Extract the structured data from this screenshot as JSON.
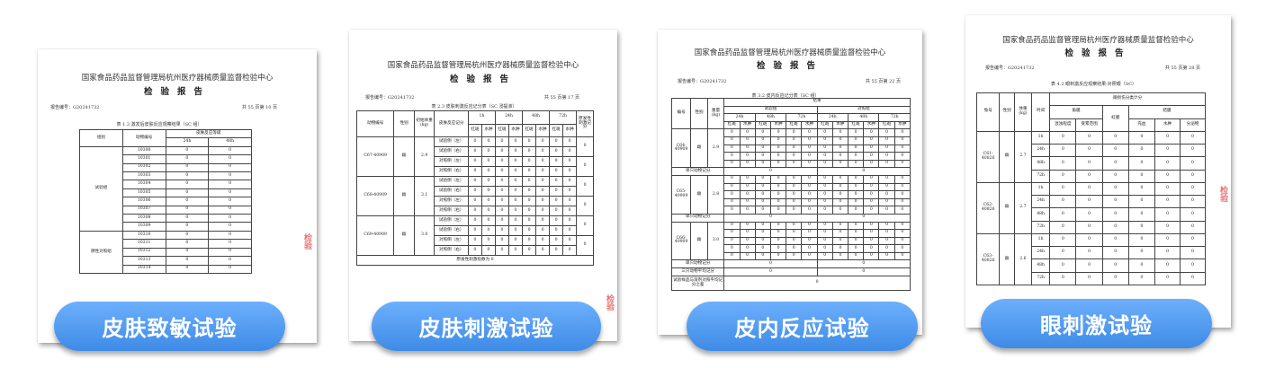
{
  "doc1": {
    "org": "国家食品药品监督管理局杭州医疗器械质量监督检验中心",
    "title": "检验报告",
    "report_no": "报告编号：G20241732",
    "page": "共 55 页第 10 页",
    "caption": "表 1.3 激发后皮肤反应观察结果（SC 组）",
    "headers": {
      "group": "组别",
      "animal": "动物编号",
      "grade": "皮肤反应等级",
      "times": [
        "24h",
        "48h"
      ]
    },
    "groups": [
      {
        "name": "试验组",
        "rows": [
          {
            "id": "10300",
            "values": [
              0,
              0
            ]
          },
          {
            "id": "10301",
            "values": [
              0,
              0
            ]
          },
          {
            "id": "10302",
            "values": [
              0,
              0
            ]
          },
          {
            "id": "10303",
            "values": [
              0,
              0
            ]
          },
          {
            "id": "10304",
            "values": [
              0,
              0
            ]
          },
          {
            "id": "10305",
            "values": [
              0,
              0
            ]
          },
          {
            "id": "10306",
            "values": [
              0,
              0
            ]
          },
          {
            "id": "10307",
            "values": [
              0,
              0
            ]
          },
          {
            "id": "10308",
            "values": [
              0,
              0
            ]
          },
          {
            "id": "10309",
            "values": [
              0,
              0
            ]
          }
        ]
      },
      {
        "name": "阴性对照组",
        "rows": [
          {
            "id": "10310",
            "values": [
              0,
              0
            ]
          },
          {
            "id": "10311",
            "values": [
              0,
              0
            ]
          },
          {
            "id": "10312",
            "values": [
              0,
              0
            ]
          },
          {
            "id": "10313",
            "values": [
              0,
              0
            ]
          },
          {
            "id": "10314",
            "values": [
              0,
              0
            ]
          }
        ]
      }
    ],
    "label": "皮肤致敏试验"
  },
  "doc2": {
    "org": "国家食品药品监督管理局杭州医疗器械质量监督检验中心",
    "title": "检验报告",
    "report_no": "报告编号：G20241732",
    "page": "共 55 页第 17 页",
    "caption": "表 2.3 皮肤刺激反应记分表（SC 浸提液）",
    "headers": {
      "animal": "动物编号",
      "sex": "性别",
      "weight": "初始体重(kg)",
      "score": "皮肤反应记分",
      "times": [
        "1h",
        "24h",
        "48h",
        "72h"
      ],
      "erythema": "红斑",
      "edema": "水肿",
      "primary": "原发性刺激记分"
    },
    "animals": [
      {
        "id": "C67-40909",
        "sex": "雌",
        "weight": "2.9",
        "sites": [
          {
            "site": "试验侧（左）",
            "values": [
              0,
              0,
              0,
              0,
              0,
              0,
              0,
              0
            ]
          },
          {
            "site": "试验侧（右）",
            "values": [
              0,
              0,
              0,
              0,
              0,
              0,
              0,
              0
            ]
          },
          {
            "site": "对照侧（左）",
            "values": [
              0,
              0,
              0,
              0,
              0,
              0,
              0,
              0
            ]
          },
          {
            "site": "对照侧（右）",
            "values": [
              0,
              0,
              0,
              0,
              0,
              0,
              0,
              0
            ]
          }
        ],
        "scores": [
          0,
          0
        ]
      },
      {
        "id": "C68-40909",
        "sex": "雌",
        "weight": "3.1",
        "sites": [
          {
            "site": "试验侧（左）",
            "values": [
              0,
              0,
              0,
              0,
              0,
              0,
              0,
              0
            ]
          },
          {
            "site": "试验侧（右）",
            "values": [
              0,
              0,
              0,
              0,
              0,
              0,
              0,
              0
            ]
          },
          {
            "site": "对照侧（左）",
            "values": [
              0,
              0,
              0,
              0,
              0,
              0,
              0,
              0
            ]
          },
          {
            "site": "对照侧（右）",
            "values": [
              0,
              0,
              0,
              0,
              0,
              0,
              0,
              0
            ]
          }
        ],
        "scores": [
          0,
          0
        ]
      },
      {
        "id": "C69-40909",
        "sex": "雌",
        "weight": "3.0",
        "sites": [
          {
            "site": "试验侧（左）",
            "values": [
              0,
              0,
              0,
              0,
              0,
              0,
              0,
              0
            ]
          },
          {
            "site": "试验侧（右）",
            "values": [
              0,
              0,
              0,
              0,
              0,
              0,
              0,
              0
            ]
          },
          {
            "site": "对照侧（左）",
            "values": [
              0,
              0,
              0,
              0,
              0,
              0,
              0,
              0
            ]
          },
          {
            "site": "对照侧（右）",
            "values": [
              0,
              0,
              0,
              0,
              0,
              0,
              0,
              0
            ]
          }
        ],
        "scores": [
          0,
          0
        ]
      }
    ],
    "footer": "原发性刺激指数为 0",
    "label": "皮肤刺激试验"
  },
  "doc3": {
    "org": "国家食品药品监督管理局杭州医疗器械质量监督检验中心",
    "title": "检验报告",
    "report_no": "报告编号：G20241732",
    "page": "共 55 页第 22 页",
    "caption": "表 3.2 皮内反应记分表（SC 组）",
    "headers": {
      "id": "编号",
      "sex": "性别",
      "weight": "重量(kg)",
      "result": "结果",
      "test": "试验组",
      "control": "对照组",
      "times": [
        "24h",
        "48h",
        "72h"
      ],
      "erythema": "红斑",
      "edema": "水肿"
    },
    "animals": [
      {
        "id": "C64-40909",
        "sex": "雌",
        "weight": "2.9",
        "rows": [
          [
            0,
            0,
            0,
            0,
            0,
            0,
            0,
            0,
            0,
            0,
            0,
            0
          ],
          [
            0,
            0,
            0,
            0,
            0,
            0,
            0,
            0,
            0,
            0,
            0,
            0
          ],
          [
            0,
            0,
            0,
            0,
            0,
            0,
            0,
            0,
            0,
            0,
            0,
            0
          ],
          [
            0,
            0,
            0,
            0,
            0,
            0,
            0,
            0,
            0,
            0,
            0,
            0
          ],
          [
            0,
            0,
            0,
            0,
            0,
            0,
            0,
            0,
            0,
            0,
            0,
            0
          ]
        ],
        "single_label": "单只动物记分",
        "single": [
          0,
          0
        ]
      },
      {
        "id": "C65-40909",
        "sex": "雌",
        "weight": "2.8",
        "rows": [
          [
            0,
            0,
            0,
            0,
            0,
            0,
            0,
            0,
            0,
            0,
            0,
            0
          ],
          [
            0,
            0,
            0,
            0,
            0,
            0,
            0,
            0,
            0,
            0,
            0,
            0
          ],
          [
            0,
            0,
            0,
            0,
            0,
            0,
            0,
            0,
            0,
            0,
            0,
            0
          ],
          [
            0,
            0,
            0,
            0,
            0,
            0,
            0,
            0,
            0,
            0,
            0,
            0
          ],
          [
            0,
            0,
            0,
            0,
            0,
            0,
            0,
            0,
            0,
            0,
            0,
            0
          ]
        ],
        "single_label": "单只动物记分",
        "single": [
          0,
          0
        ]
      },
      {
        "id": "C66-40909",
        "sex": "雌",
        "weight": "3.0",
        "rows": [
          [
            0,
            0,
            0,
            0,
            0,
            0,
            0,
            0,
            0,
            0,
            0,
            0
          ],
          [
            0,
            0,
            0,
            0,
            0,
            0,
            0,
            0,
            0,
            0,
            0,
            0
          ],
          [
            0,
            0,
            0,
            0,
            0,
            0,
            0,
            0,
            0,
            0,
            0,
            0
          ],
          [
            0,
            0,
            0,
            0,
            0,
            0,
            0,
            0,
            0,
            0,
            0,
            0
          ],
          [
            0,
            0,
            0,
            0,
            0,
            0,
            0,
            0,
            0,
            0,
            0,
            0
          ]
        ],
        "single_label": "单只动物记分",
        "single": [
          0,
          0
        ]
      }
    ],
    "avg_label": "三只动物平均记分",
    "avg": [
      0,
      0
    ],
    "diff_label": "试验样品与溶剂对照平均记分之差",
    "diff": 0,
    "label": "皮内反应试验"
  },
  "doc4": {
    "org": "国家食品药品监督管理局杭州医疗器械质量监督检验中心",
    "title": "检验报告",
    "report_no": "报告编号：G20241732",
    "page": "共 55 页第 28 页",
    "caption": "表 4.2 眼刺激反应观察结果-对照眼（SC）",
    "headers": {
      "id": "兔号",
      "sex": "性别",
      "weight": "体重(kg)",
      "time": "时间",
      "score": "眼损伤分类计分",
      "cornea": "角膜",
      "iris": "虹膜",
      "conjunctiva": "结膜",
      "cornea_sub": [
        "混浊程度",
        "受累范围"
      ],
      "conj_sub": [
        "充血",
        "水肿",
        "分泌物"
      ]
    },
    "animals": [
      {
        "id": "C61-40826",
        "sex": "雌",
        "weight": "2.7",
        "rows": [
          {
            "time": "1h",
            "values": [
              0,
              0,
              0,
              0,
              0,
              0
            ]
          },
          {
            "time": "24h",
            "values": [
              0,
              0,
              0,
              0,
              0,
              0
            ]
          },
          {
            "time": "48h",
            "values": [
              0,
              0,
              0,
              0,
              0,
              0
            ]
          },
          {
            "time": "72h",
            "values": [
              0,
              0,
              0,
              0,
              0,
              0
            ]
          }
        ]
      },
      {
        "id": "C62-40826",
        "sex": "雌",
        "weight": "2.7",
        "rows": [
          {
            "time": "1h",
            "values": [
              0,
              0,
              0,
              0,
              0,
              0
            ]
          },
          {
            "time": "24h",
            "values": [
              0,
              0,
              0,
              0,
              0,
              0
            ]
          },
          {
            "time": "48h",
            "values": [
              0,
              0,
              0,
              0,
              0,
              0
            ]
          },
          {
            "time": "72h",
            "values": [
              0,
              0,
              0,
              0,
              0,
              0
            ]
          }
        ]
      },
      {
        "id": "C63-40826",
        "sex": "雌",
        "weight": "2.6",
        "rows": [
          {
            "time": "1h",
            "values": [
              0,
              0,
              0,
              0,
              0,
              0
            ]
          },
          {
            "time": "24h",
            "values": [
              0,
              0,
              0,
              0,
              0,
              0
            ]
          },
          {
            "time": "48h",
            "values": [
              0,
              0,
              0,
              0,
              0,
              0
            ]
          },
          {
            "time": "72h",
            "values": [
              0,
              0,
              0,
              0,
              0,
              0
            ]
          }
        ]
      }
    ],
    "label": "眼刺激试验"
  },
  "colors": {
    "pill_top": "#6daffd",
    "pill_bottom": "#3e8be6",
    "stamp": "#e05050"
  }
}
